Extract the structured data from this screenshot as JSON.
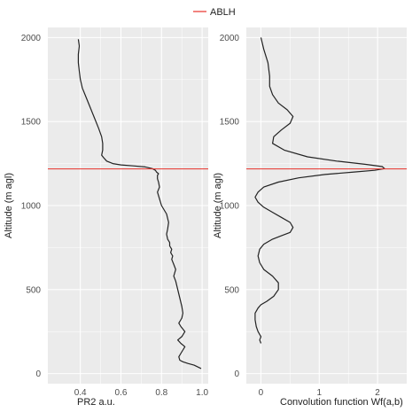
{
  "legend": {
    "label": "ABLH",
    "color": "#e8312a"
  },
  "style": {
    "panel_bg": "#ebebeb",
    "grid_major": "#ffffff",
    "profile_color": "#222222"
  },
  "chart_data": [
    {
      "type": "line",
      "xlabel": "PR2 a.u.",
      "ylabel": "Altitude (m agl)",
      "xlim": [
        0.24,
        1.03
      ],
      "ylim": [
        -60,
        2060
      ],
      "xticks": [
        0.4,
        0.6,
        0.8,
        1.0
      ],
      "xtick_labels": [
        "0.4",
        "0.6",
        "0.8",
        "1.0"
      ],
      "yticks": [
        0,
        500,
        1000,
        1500,
        2000
      ],
      "ytick_labels": [
        "0",
        "500",
        "1000",
        "1500",
        "2000"
      ],
      "grid": true,
      "hline": {
        "name": "ABLH",
        "y": 1218
      },
      "series": [
        {
          "x": [
            0.995,
            0.96,
            0.93,
            0.905,
            0.89,
            0.885,
            0.9,
            0.915,
            0.895,
            0.88,
            0.9,
            0.915,
            0.895,
            0.885,
            0.9,
            0.905,
            0.9,
            0.89,
            0.88,
            0.87,
            0.86,
            0.87,
            0.86,
            0.85,
            0.855,
            0.845,
            0.85,
            0.84,
            0.84,
            0.83,
            0.825,
            0.83,
            0.835,
            0.825,
            0.8,
            0.79,
            0.78,
            0.79,
            0.785,
            0.78,
            0.78,
            0.785,
            0.775,
            0.77,
            0.755,
            0.72,
            0.66,
            0.6,
            0.56,
            0.53,
            0.515,
            0.505,
            0.51,
            0.51,
            0.505,
            0.49,
            0.47,
            0.45,
            0.43,
            0.41,
            0.4,
            0.395,
            0.39,
            0.39,
            0.395,
            0.39
          ],
          "y": [
            30,
            50,
            60,
            70,
            80,
            100,
            130,
            160,
            180,
            200,
            220,
            250,
            280,
            300,
            330,
            360,
            400,
            450,
            500,
            550,
            580,
            620,
            650,
            680,
            700,
            720,
            740,
            760,
            780,
            800,
            830,
            860,
            900,
            950,
            1000,
            1040,
            1080,
            1110,
            1140,
            1160,
            1180,
            1190,
            1200,
            1210,
            1220,
            1230,
            1236,
            1242,
            1250,
            1265,
            1285,
            1300,
            1330,
            1370,
            1410,
            1460,
            1520,
            1580,
            1640,
            1700,
            1750,
            1800,
            1850,
            1900,
            1950,
            1990
          ]
        }
      ]
    },
    {
      "type": "line",
      "xlabel": "Convolution function Wf(a,b)",
      "ylabel": "Altitude (m agl)",
      "xlim": [
        -0.25,
        2.5
      ],
      "ylim": [
        -60,
        2060
      ],
      "xticks": [
        0,
        1,
        2
      ],
      "xtick_labels": [
        "0",
        "1",
        "2"
      ],
      "yticks": [
        0,
        500,
        1000,
        1500,
        2000
      ],
      "ytick_labels": [
        "0",
        "500",
        "1000",
        "1500",
        "2000"
      ],
      "grid": true,
      "hline": {
        "name": "ABLH",
        "y": 1218
      },
      "series": [
        {
          "x": [
            0.0,
            -0.02,
            0.0,
            -0.05,
            -0.08,
            -0.1,
            -0.1,
            -0.05,
            0.0,
            0.1,
            0.22,
            0.3,
            0.3,
            0.2,
            0.05,
            -0.02,
            -0.05,
            -0.02,
            0.05,
            0.2,
            0.35,
            0.5,
            0.55,
            0.5,
            0.35,
            0.2,
            0.05,
            -0.05,
            -0.1,
            -0.05,
            0.05,
            0.3,
            0.65,
            1.1,
            1.6,
            1.95,
            2.12,
            2.08,
            1.8,
            1.3,
            0.8,
            0.4,
            0.2,
            0.22,
            0.35,
            0.5,
            0.55,
            0.45,
            0.3,
            0.2,
            0.15,
            0.15,
            0.12,
            0.05,
            0.0
          ],
          "y": [
            180,
            200,
            220,
            250,
            280,
            320,
            360,
            390,
            410,
            430,
            460,
            500,
            540,
            580,
            620,
            660,
            700,
            740,
            770,
            800,
            820,
            840,
            870,
            900,
            930,
            960,
            990,
            1020,
            1050,
            1080,
            1110,
            1140,
            1165,
            1185,
            1200,
            1210,
            1220,
            1232,
            1245,
            1265,
            1290,
            1330,
            1370,
            1410,
            1450,
            1490,
            1530,
            1570,
            1610,
            1660,
            1710,
            1770,
            1850,
            1930,
            2000
          ]
        }
      ]
    }
  ]
}
